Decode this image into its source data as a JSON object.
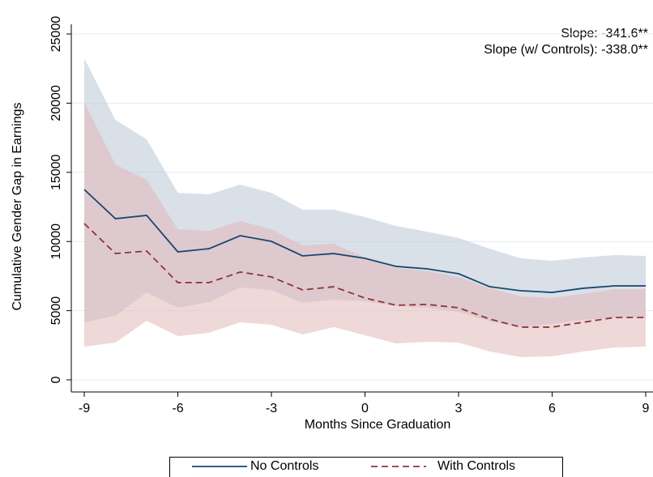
{
  "chart_data": {
    "type": "line",
    "x_label": "Months Since Graduation",
    "y_label": "Cumulative Gender Gap in Earnings",
    "annotations": [
      "Slope: -341.6**",
      "Slope (w/ Controls): -338.0**"
    ],
    "x": [
      -9,
      -8,
      -7,
      -6,
      -5,
      -4,
      -3,
      -2,
      -1,
      0,
      1,
      2,
      3,
      4,
      5,
      6,
      7,
      8,
      9
    ],
    "xlim": [
      -9,
      9
    ],
    "xticks": [
      -9,
      -6,
      -3,
      0,
      3,
      6,
      9
    ],
    "ylim": [
      0,
      25000
    ],
    "yticks": [
      0,
      5000,
      10000,
      15000,
      20000,
      25000
    ],
    "grid": true,
    "legend": "bottom",
    "series": [
      {
        "name": "No Controls",
        "color": "#1a476f",
        "dash": "solid",
        "band_color": "#b9c6d6",
        "values": [
          13760,
          11650,
          11890,
          9250,
          9480,
          10420,
          10010,
          8960,
          9130,
          8780,
          8200,
          8020,
          7670,
          6730,
          6440,
          6320,
          6620,
          6790,
          6790
        ],
        "ci_upper": [
          23240,
          18790,
          17390,
          13520,
          13410,
          14110,
          13520,
          12300,
          12300,
          11770,
          11120,
          10710,
          10250,
          9480,
          8780,
          8610,
          8840,
          9020,
          8960
        ],
        "ci_lower": [
          4160,
          4630,
          6320,
          5210,
          5620,
          6670,
          6500,
          5560,
          5800,
          5680,
          5330,
          5210,
          4920,
          4220,
          3810,
          4040,
          4330,
          4510,
          4510
        ]
      },
      {
        "name": "With Controls",
        "color": "#90353b",
        "dash": "dashed",
        "band_color": "#e2b8b8",
        "values": [
          11300,
          9130,
          9310,
          7030,
          7030,
          7790,
          7440,
          6500,
          6730,
          5910,
          5390,
          5450,
          5210,
          4390,
          3810,
          3810,
          4160,
          4510,
          4510
        ],
        "ci_upper": [
          20080,
          15570,
          14460,
          10890,
          10770,
          11480,
          10890,
          9720,
          9840,
          8840,
          8080,
          7850,
          7440,
          6620,
          6030,
          5910,
          6210,
          6560,
          6560
        ],
        "ci_lower": [
          2400,
          2690,
          4270,
          3160,
          3400,
          4160,
          3980,
          3280,
          3810,
          3220,
          2630,
          2750,
          2690,
          2050,
          1640,
          1700,
          2050,
          2340,
          2400
        ]
      }
    ]
  }
}
